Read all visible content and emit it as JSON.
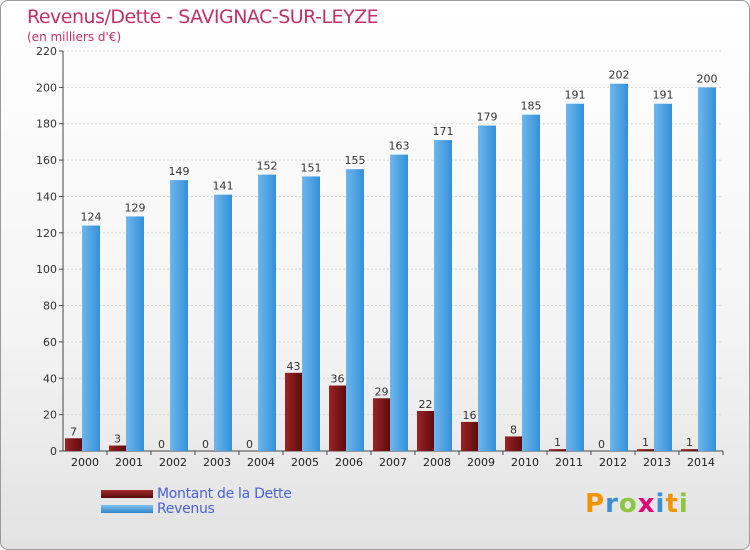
{
  "chart_data": {
    "type": "bar",
    "title": "Revenus/Dette - SAVIGNAC-SUR-LEYZE",
    "subtitle": "(en milliers d'€)",
    "categories": [
      "2000",
      "2001",
      "2002",
      "2003",
      "2004",
      "2005",
      "2006",
      "2007",
      "2008",
      "2009",
      "2010",
      "2011",
      "2012",
      "2013",
      "2014"
    ],
    "series": [
      {
        "name": "Montant de la Dette",
        "color": "#7a1416",
        "values": [
          7,
          3,
          0,
          0,
          0,
          43,
          36,
          29,
          22,
          16,
          8,
          1,
          0,
          1,
          1
        ]
      },
      {
        "name": "Revenus",
        "color": "#4a9ee0",
        "values": [
          124,
          129,
          149,
          141,
          152,
          151,
          155,
          163,
          171,
          179,
          185,
          191,
          202,
          191,
          200
        ]
      }
    ],
    "ylim": [
      0,
      220
    ],
    "yticks": [
      0,
      20,
      40,
      60,
      80,
      100,
      120,
      140,
      160,
      180,
      200,
      220
    ],
    "grid": true,
    "xlabel": "",
    "ylabel": ""
  },
  "legend": {
    "items": [
      {
        "label": "Montant de la Dette",
        "color": "#7a1416"
      },
      {
        "label": "Revenus",
        "color": "#4a9ee0"
      }
    ]
  },
  "logo": {
    "text": "Proxiti",
    "letters": [
      {
        "ch": "P",
        "color": "#f29400"
      },
      {
        "ch": "r",
        "color": "#3a8fd6"
      },
      {
        "ch": "o",
        "color": "#8cc63f"
      },
      {
        "ch": "x",
        "color": "#e2007a"
      },
      {
        "ch": "i",
        "color": "#3a8fd6"
      },
      {
        "ch": "t",
        "color": "#f29400"
      },
      {
        "ch": "i",
        "color": "#8cc63f"
      }
    ]
  }
}
